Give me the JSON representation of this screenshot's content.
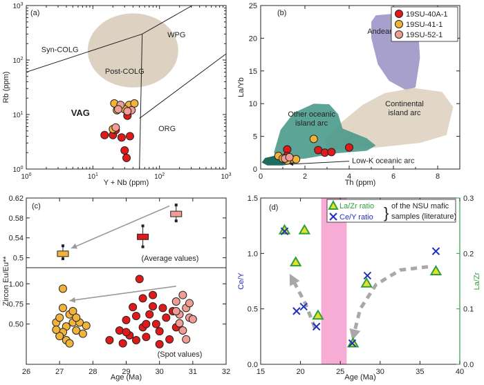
{
  "chart_data": [
    {
      "id": "a",
      "type": "scatter",
      "panel_label": "(a)",
      "xlabel": "Y + Nb (ppm)",
      "ylabel": "Rb (ppm)",
      "x_scale": "log",
      "y_scale": "log",
      "xlim": [
        1,
        1000
      ],
      "ylim": [
        1,
        1000
      ],
      "x_ticks": [
        1,
        10,
        100,
        1000
      ],
      "y_ticks": [
        1,
        10,
        100,
        1000
      ],
      "x_tick_labels": [
        "10^0",
        "10^1",
        "10^2",
        "10^3"
      ],
      "y_tick_labels": [
        "10^0",
        "10^1",
        "10^2",
        "10^3"
      ],
      "field_labels": [
        {
          "text": "Syn-COLG",
          "x": 3.2,
          "y": 140
        },
        {
          "text": "WPG",
          "x": 180,
          "y": 260
        },
        {
          "text": "Post-COLG",
          "x": 30,
          "y": 56
        },
        {
          "text": "VAG",
          "x": 6.5,
          "y": 9.5
        },
        {
          "text": "ORG",
          "x": 130,
          "y": 5
        }
      ],
      "boundaries": [
        {
          "points": [
            [
              1,
              60
            ],
            [
              55,
              300
            ],
            [
              310,
              1000
            ]
          ]
        },
        {
          "points": [
            [
              55,
              300
            ],
            [
              50,
              1
            ]
          ]
        },
        {
          "points": [
            [
              50,
              8.5
            ],
            [
              1000,
              130
            ]
          ]
        }
      ],
      "post_colg_field": {
        "center": [
          40,
          150
        ],
        "radius_decades": 0.68
      },
      "series": [
        {
          "name": "19SU-40A-1",
          "color": "#e01a1a",
          "points": [
            [
              15,
              4.2
            ],
            [
              20,
              4.2
            ],
            [
              27,
              3.8
            ],
            [
              33,
              9.5
            ],
            [
              36,
              4
            ],
            [
              30,
              2.2
            ],
            [
              32,
              1.6
            ],
            [
              22,
              5.2
            ]
          ]
        },
        {
          "name": "19SU-41-1",
          "color": "#f2b33a",
          "points": [
            [
              21,
              16
            ],
            [
              35,
              15
            ],
            [
              42,
              16
            ],
            [
              23,
              12
            ],
            [
              20,
              5.4
            ],
            [
              30,
              12.5
            ]
          ]
        },
        {
          "name": "19SU-52-1",
          "color": "#f29c96",
          "points": [
            [
              26,
              15
            ],
            [
              24,
              12.5
            ],
            [
              38,
              12
            ],
            [
              22,
              5.8
            ],
            [
              33,
              11.5
            ]
          ]
        }
      ]
    },
    {
      "id": "b",
      "type": "scatter",
      "panel_label": "(b)",
      "xlabel": "Th (ppm)",
      "ylabel": "La/Yb",
      "xlim": [
        0,
        9
      ],
      "ylim": [
        0,
        25
      ],
      "x_ticks": [
        0,
        2,
        4,
        6,
        8
      ],
      "y_ticks": [
        0,
        5,
        10,
        15,
        20,
        25
      ],
      "legend": [
        "19SU-40A-1",
        "19SU-41-1",
        "19SU-52-1"
      ],
      "legend_position": "top-right",
      "fields": [
        {
          "label": "Andean arc",
          "label_lines": [
            "Andean arc"
          ],
          "label_at": [
            5.7,
            20.7
          ],
          "color": "#9d96c7",
          "points": [
            [
              5.2,
              23.5
            ],
            [
              6.2,
              23.8
            ],
            [
              7.1,
              22.3
            ],
            [
              7.2,
              17
            ],
            [
              7.0,
              12.5
            ],
            [
              6.6,
              12
            ],
            [
              5.8,
              13.5
            ],
            [
              5.3,
              16
            ],
            [
              5.0,
              20
            ],
            [
              5.0,
              22.5
            ]
          ]
        },
        {
          "label": "Continental island arc",
          "label_lines": [
            "Continental",
            "island arc"
          ],
          "label_at": [
            6.5,
            9.6
          ],
          "color": "#dfd3c0",
          "points": [
            [
              2.9,
              4.5
            ],
            [
              3.6,
              7.0
            ],
            [
              4.6,
              9.8
            ],
            [
              5.6,
              11.6
            ],
            [
              6.9,
              12.4
            ],
            [
              8.2,
              11.8
            ],
            [
              8.7,
              9.5
            ],
            [
              8.4,
              5.2
            ],
            [
              7.2,
              4.0
            ],
            [
              5.0,
              3.2
            ],
            [
              3.0,
              3.0
            ]
          ]
        },
        {
          "label": "Other oceanic island arc",
          "label_lines": [
            "Other oceanic",
            "island arc"
          ],
          "label_at": [
            2.3,
            8.0
          ],
          "color": "#4a9a8a",
          "points": [
            [
              0.6,
              2.5
            ],
            [
              0.9,
              6.0
            ],
            [
              1.5,
              8.6
            ],
            [
              2.4,
              10.0
            ],
            [
              3.1,
              9.9
            ],
            [
              3.5,
              8.4
            ],
            [
              3.7,
              6.2
            ],
            [
              4.8,
              4.7
            ],
            [
              5.2,
              3.6
            ],
            [
              4.8,
              2.8
            ],
            [
              3.4,
              2.4
            ],
            [
              2.0,
              1.6
            ],
            [
              1.0,
              1.4
            ]
          ]
        },
        {
          "label": "Low-K oceanic arc",
          "label_lines": [
            "Low-K oceanic arc"
          ],
          "label_at": [
            4.95,
            1.05
          ],
          "color": "#1f6b60",
          "points": [
            [
              0.05,
              1.0
            ],
            [
              0.2,
              1.7
            ],
            [
              0.6,
              2.0
            ],
            [
              1.2,
              2.0
            ],
            [
              1.6,
              1.6
            ],
            [
              1.6,
              0.9
            ],
            [
              1.0,
              0.55
            ],
            [
              0.3,
              0.55
            ]
          ]
        }
      ],
      "annotations": [
        {
          "text": "Low-K oceanic arc",
          "arrow_from": [
            4.0,
            1.2
          ],
          "arrow_to": [
            1.3,
            0.75
          ]
        }
      ],
      "series": [
        {
          "name": "19SU-40A-1",
          "color": "#e01a1a",
          "points": [
            [
              1.2,
              3.0
            ],
            [
              2.6,
              2.9
            ],
            [
              2.9,
              2.5
            ],
            [
              3.2,
              2.6
            ],
            [
              4.0,
              3.3
            ],
            [
              1.2,
              2.0
            ]
          ]
        },
        {
          "name": "19SU-41-1",
          "color": "#f2b33a",
          "points": [
            [
              0.8,
              2.0
            ],
            [
              1.0,
              1.6
            ],
            [
              1.4,
              1.5
            ],
            [
              1.6,
              1.5
            ],
            [
              2.4,
              4.6
            ],
            [
              1.2,
              1.3
            ]
          ]
        },
        {
          "name": "19SU-52-1",
          "color": "#f29c96",
          "points": [
            [
              1.1,
              1.6
            ],
            [
              1.3,
              1.8
            ]
          ]
        }
      ]
    },
    {
      "id": "c",
      "type": "scatter",
      "panel_label": "(c)",
      "xlabel": "Age (Ma)",
      "ylabel": "Zircon Eu/Eu**",
      "xlim": [
        26,
        32
      ],
      "x_ticks": [
        26,
        27,
        28,
        29,
        30,
        31,
        32
      ],
      "top": {
        "caption": "(Average values)",
        "ylim": [
          0.48,
          0.62
        ],
        "y_ticks": [
          0.5,
          0.54,
          0.58,
          0.62
        ],
        "averages": [
          {
            "name": "19SU-41-1",
            "color": "#f2b33a",
            "x": 27.1,
            "y": 0.508,
            "low": 0.498,
            "high": 0.524
          },
          {
            "name": "19SU-40A-1",
            "color": "#e01a1a",
            "x": 29.5,
            "y": 0.542,
            "low": 0.522,
            "high": 0.564
          },
          {
            "name": "19SU-52-1",
            "color": "#f29c96",
            "x": 30.5,
            "y": 0.588,
            "low": 0.574,
            "high": 0.606
          }
        ],
        "arrow": {
          "from": [
            30.3,
            0.604
          ],
          "to": [
            27.35,
            0.519
          ]
        }
      },
      "bottom": {
        "caption": "(Spot values)",
        "ylim": [
          0.0,
          1.2
        ],
        "y_ticks": [
          0.5,
          0.75,
          1.0
        ],
        "y_tick_labels": [
          "0.50",
          "0.75",
          "1.00"
        ],
        "arrow": {
          "from": [
            30.5,
            0.97
          ],
          "to": [
            27.3,
            0.79
          ]
        },
        "series": [
          {
            "name": "19SU-41-1",
            "color": "#f2b33a",
            "points": [
              [
                26.9,
                0.52
              ],
              [
                27.0,
                0.58
              ],
              [
                27.1,
                0.94
              ],
              [
                27.2,
                0.47
              ],
              [
                27.3,
                0.62
              ],
              [
                27.4,
                0.52
              ],
              [
                27.1,
                0.4
              ],
              [
                27.0,
                0.35
              ],
              [
                27.2,
                0.3
              ],
              [
                27.5,
                0.42
              ],
              [
                27.6,
                0.52
              ],
              [
                27.4,
                0.66
              ],
              [
                27.8,
                0.48
              ],
              [
                27.5,
                0.58
              ],
              [
                26.9,
                0.43
              ],
              [
                27.3,
                0.26
              ],
              [
                27.7,
                0.38
              ],
              [
                27.1,
                0.7
              ]
            ]
          },
          {
            "name": "19SU-40A-1",
            "color": "#e01a1a",
            "points": [
              [
                28.5,
                0.3
              ],
              [
                28.8,
                0.42
              ],
              [
                28.9,
                0.26
              ],
              [
                29.0,
                0.55
              ],
              [
                29.1,
                0.36
              ],
              [
                29.2,
                0.71
              ],
              [
                29.3,
                0.6
              ],
              [
                29.4,
                1.06
              ],
              [
                29.5,
                0.46
              ],
              [
                29.6,
                0.34
              ],
              [
                29.7,
                0.62
              ],
              [
                29.8,
                0.72
              ],
              [
                29.9,
                0.5
              ],
              [
                30.0,
                0.41
              ],
              [
                30.1,
                0.7
              ],
              [
                30.2,
                0.58
              ],
              [
                30.3,
                0.31
              ],
              [
                30.4,
                0.66
              ],
              [
                30.5,
                0.46
              ],
              [
                29.5,
                0.82
              ],
              [
                29.8,
                0.86
              ],
              [
                29.0,
                0.4
              ],
              [
                30.0,
                0.25
              ],
              [
                29.3,
                0.3
              ],
              [
                29.6,
                0.5
              ]
            ]
          },
          {
            "name": "19SU-52-1",
            "color": "#f29c96",
            "points": [
              [
                30.5,
                0.78
              ],
              [
                30.6,
                0.62
              ],
              [
                30.7,
                0.86
              ],
              [
                30.8,
                0.7
              ],
              [
                30.6,
                0.51
              ],
              [
                30.9,
                0.58
              ],
              [
                30.7,
                0.42
              ],
              [
                30.8,
                0.31
              ],
              [
                30.5,
                0.66
              ],
              [
                30.9,
                0.76
              ],
              [
                31.0,
                0.56
              ]
            ]
          }
        ]
      }
    },
    {
      "id": "d",
      "type": "scatter",
      "panel_label": "(d)",
      "xlabel": "Age (Ma)",
      "ylabel": "Ce/Y",
      "ylabel_right": "La/Zr",
      "xlim": [
        15,
        40
      ],
      "x_ticks": [
        15,
        20,
        25,
        30,
        35,
        40
      ],
      "ylim": [
        0,
        1.5
      ],
      "y_ticks": [
        0,
        0.5,
        1.0,
        1.5
      ],
      "y_tick_labels": [
        "0.0",
        "0.5",
        "1.0",
        "1.5"
      ],
      "ylim_right": [
        0,
        0.3
      ],
      "y_ticks_right": [
        0,
        0.1,
        0.2,
        0.3
      ],
      "y_tick_labels_right": [
        "0.0",
        "0.1",
        "0.2",
        "0.3"
      ],
      "shaded_band": {
        "x": [
          22.6,
          25.8
        ],
        "color": "#f5a3cf"
      },
      "legend": {
        "items": [
          {
            "label": "La/Zr ratio",
            "marker": "triangle",
            "color": "#2e9e3a"
          },
          {
            "label": "Ce/Y ratio",
            "marker": "x",
            "color": "#1f2fbf"
          }
        ],
        "note_lines": [
          "of the NSU mafic",
          "samples (literature)"
        ]
      },
      "trend_arrows": [
        {
          "points": [
            [
              21.8,
              0.33
            ],
            [
              20.6,
              0.55
            ],
            [
              19.2,
              0.74
            ]
          ]
        },
        {
          "points": [
            [
              36.0,
              0.88
            ],
            [
              32.5,
              0.85
            ],
            [
              29.5,
              0.72
            ],
            [
              27.5,
              0.5
            ],
            [
              26.8,
              0.3
            ]
          ]
        }
      ],
      "series": [
        {
          "name": "La/Zr ratio",
          "axis": "right",
          "marker": "triangle",
          "points": [
            [
              18.0,
              0.242
            ],
            [
              20.5,
              0.242
            ],
            [
              19.4,
              0.184
            ],
            [
              22.2,
              0.088
            ],
            [
              26.6,
              0.038
            ],
            [
              28.3,
              0.146
            ],
            [
              37.0,
              0.168
            ]
          ]
        },
        {
          "name": "Ce/Y ratio",
          "axis": "left",
          "marker": "x",
          "points": [
            [
              18.0,
              1.2
            ],
            [
              19.5,
              0.48
            ],
            [
              20.4,
              0.52
            ],
            [
              22.0,
              0.34
            ],
            [
              26.5,
              0.19
            ],
            [
              28.4,
              0.8
            ],
            [
              37.0,
              1.02
            ]
          ]
        }
      ]
    }
  ]
}
